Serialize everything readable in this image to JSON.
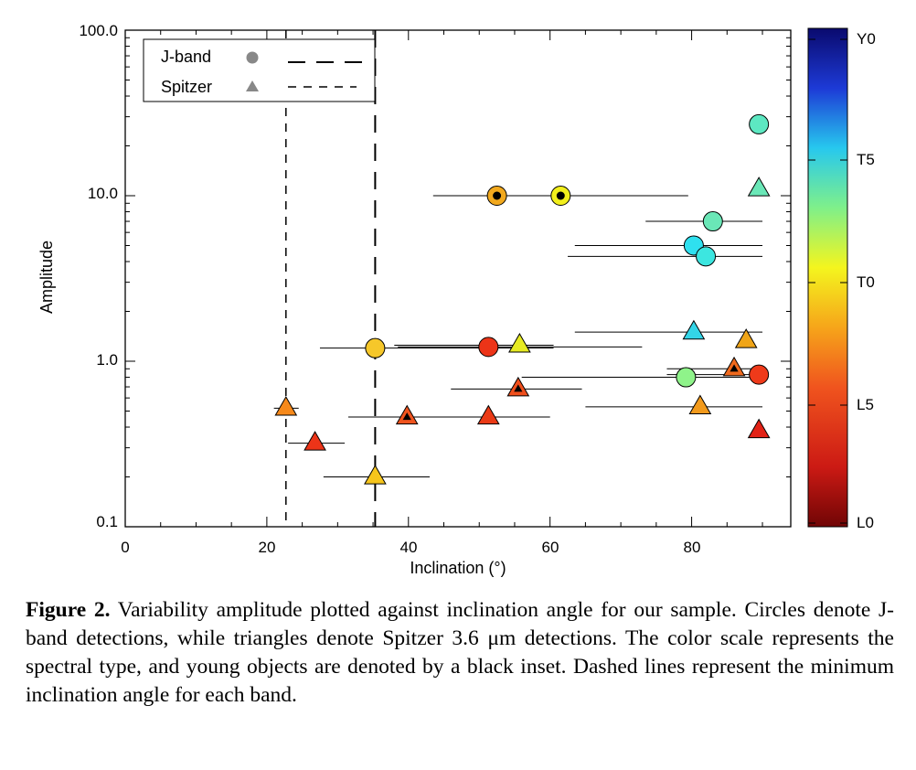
{
  "chart_data": {
    "type": "scatter",
    "xlabel": "Inclination (°)",
    "ylabel": "Amplitude",
    "xlim": [
      0,
      94
    ],
    "ylim": [
      0.1,
      100
    ],
    "yscale": "log",
    "x_ticks": [
      "0",
      "20",
      "40",
      "60",
      "80"
    ],
    "y_ticks": [
      "0.1",
      "1.0",
      "10.0",
      "100.0"
    ],
    "legend": {
      "placement": "top-left",
      "entries": [
        {
          "label": "J-band",
          "marker": "circle",
          "line": "long-dash"
        },
        {
          "label": "Spitzer",
          "marker": "triangle",
          "line": "short-dash"
        }
      ]
    },
    "min_inclination_lines": [
      {
        "band": "J-band",
        "x": 35.3,
        "style": "long-dash"
      },
      {
        "band": "Spitzer",
        "x": 22.7,
        "style": "short-dash"
      }
    ],
    "colorbar": {
      "ticks": [
        "Y0",
        "T5",
        "T0",
        "L5",
        "L0"
      ],
      "colors": [
        "#0a0a6e",
        "#1d3ad6",
        "#27c8ee",
        "#7ff08a",
        "#f4f51e",
        "#f6a51a",
        "#f0541e",
        "#cc1a14",
        "#700505"
      ]
    },
    "points": [
      {
        "marker": "circle",
        "x": 89.5,
        "y": 27,
        "xerr": [
          89.5,
          89.5
        ],
        "color": "#5de8c2",
        "young": false
      },
      {
        "marker": "circle",
        "x": 52.5,
        "y": 10,
        "xerr": [
          43.5,
          79.5
        ],
        "color": "#f2a91e",
        "young": true
      },
      {
        "marker": "circle",
        "x": 61.5,
        "y": 10,
        "xerr": [
          43.5,
          79.5
        ],
        "color": "#f2ef1c",
        "young": true
      },
      {
        "marker": "circle",
        "x": 83,
        "y": 7,
        "xerr": [
          73.5,
          90
        ],
        "color": "#6ae7b7",
        "young": false
      },
      {
        "marker": "circle",
        "x": 80.3,
        "y": 5,
        "xerr": [
          63.5,
          90
        ],
        "color": "#2fe0ef",
        "young": false
      },
      {
        "marker": "circle",
        "x": 82,
        "y": 4.3,
        "xerr": [
          62.5,
          90
        ],
        "color": "#3ce6e0",
        "young": false
      },
      {
        "marker": "circle",
        "x": 35.3,
        "y": 1.2,
        "xerr": [
          27.5,
          60.5
        ],
        "color": "#f6c72a",
        "young": false
      },
      {
        "marker": "circle",
        "x": 51.3,
        "y": 1.22,
        "xerr": [
          38.5,
          73
        ],
        "color": "#ec3418",
        "young": false
      },
      {
        "marker": "circle",
        "x": 79.2,
        "y": 0.8,
        "xerr": [
          56,
          90
        ],
        "color": "#8ff38a",
        "young": false
      },
      {
        "marker": "circle",
        "x": 89.5,
        "y": 0.83,
        "xerr": [
          76.5,
          90
        ],
        "color": "#ef3a1a",
        "young": false
      },
      {
        "marker": "triangle",
        "x": 89.5,
        "y": 11,
        "xerr": [
          89.5,
          89.5
        ],
        "color": "#6ae7b7",
        "young": false
      },
      {
        "marker": "triangle",
        "x": 80.3,
        "y": 1.5,
        "xerr": [
          63.5,
          90
        ],
        "color": "#33d5e8",
        "young": false
      },
      {
        "marker": "triangle",
        "x": 55.7,
        "y": 1.25,
        "xerr": [
          38,
          60.5
        ],
        "color": "#e6ea22",
        "young": false
      },
      {
        "marker": "triangle",
        "x": 87.7,
        "y": 1.33,
        "xerr": [
          87.7,
          87.7
        ],
        "color": "#f0a518",
        "young": false
      },
      {
        "marker": "triangle",
        "x": 86,
        "y": 0.9,
        "xerr": [
          76.5,
          90
        ],
        "color": "#f06a1e",
        "young": true
      },
      {
        "marker": "triangle",
        "x": 55.5,
        "y": 0.68,
        "xerr": [
          46,
          64.5
        ],
        "color": "#f04f1c",
        "young": true
      },
      {
        "marker": "triangle",
        "x": 22.7,
        "y": 0.52,
        "xerr": [
          21,
          24.5
        ],
        "color": "#f6891a",
        "young": false
      },
      {
        "marker": "triangle",
        "x": 81.2,
        "y": 0.53,
        "xerr": [
          65,
          90
        ],
        "color": "#f29a1c",
        "young": false
      },
      {
        "marker": "triangle",
        "x": 39.8,
        "y": 0.46,
        "xerr": [
          31.5,
          48
        ],
        "color": "#f0541e",
        "young": true
      },
      {
        "marker": "triangle",
        "x": 51.3,
        "y": 0.46,
        "xerr": [
          38.5,
          60
        ],
        "color": "#ea3a16",
        "young": false
      },
      {
        "marker": "triangle",
        "x": 26.8,
        "y": 0.32,
        "xerr": [
          23,
          31
        ],
        "color": "#ec3418",
        "young": false
      },
      {
        "marker": "triangle",
        "x": 89.5,
        "y": 0.38,
        "xerr": [
          89.5,
          89.5
        ],
        "color": "#e22216",
        "young": false
      },
      {
        "marker": "triangle",
        "x": 35.3,
        "y": 0.2,
        "xerr": [
          28,
          43
        ],
        "color": "#f6c51c",
        "young": false
      }
    ]
  },
  "caption": {
    "label": "Figure 2.",
    "text": " Variability amplitude plotted against inclination angle for our sample. Circles denote J-band detections, while triangles denote Spitzer 3.6 μm detections. The color scale represents the spectral type, and young objects are denoted by a black inset. Dashed lines represent the minimum inclination angle for each band."
  }
}
